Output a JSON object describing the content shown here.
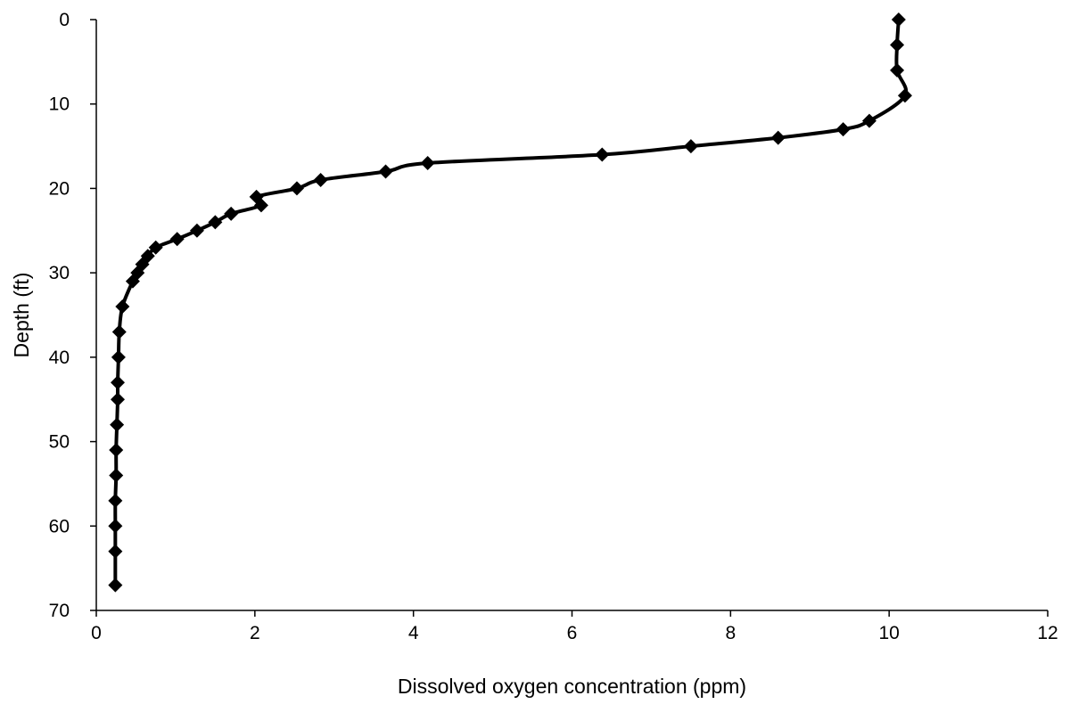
{
  "chart_data": {
    "type": "line",
    "title": "",
    "xlabel": "Dissolved oxygen concentration (ppm)",
    "ylabel": "Depth (ft)",
    "xlim": [
      0,
      12
    ],
    "ylim": [
      0,
      70
    ],
    "y_axis_inverted": true,
    "x_ticks": [
      "0",
      "2",
      "4",
      "6",
      "8",
      "10",
      "12"
    ],
    "y_ticks": [
      "0",
      "10",
      "20",
      "30",
      "40",
      "50",
      "60",
      "70"
    ],
    "grid": false,
    "legend": "none",
    "marker": "diamond",
    "line_style": "smoothed",
    "colors": {
      "series": "#000000",
      "axes": "#000000"
    },
    "series": [
      {
        "points": [
          {
            "x": 10.12,
            "y": 0
          },
          {
            "x": 10.1,
            "y": 3
          },
          {
            "x": 10.1,
            "y": 6
          },
          {
            "x": 10.2,
            "y": 9
          },
          {
            "x": 9.75,
            "y": 12
          },
          {
            "x": 9.42,
            "y": 13
          },
          {
            "x": 8.6,
            "y": 14
          },
          {
            "x": 7.5,
            "y": 15
          },
          {
            "x": 6.38,
            "y": 16
          },
          {
            "x": 4.18,
            "y": 17
          },
          {
            "x": 3.65,
            "y": 18
          },
          {
            "x": 2.83,
            "y": 19
          },
          {
            "x": 2.53,
            "y": 20
          },
          {
            "x": 2.02,
            "y": 21
          },
          {
            "x": 2.08,
            "y": 22
          },
          {
            "x": 1.7,
            "y": 23
          },
          {
            "x": 1.5,
            "y": 24
          },
          {
            "x": 1.27,
            "y": 25
          },
          {
            "x": 1.02,
            "y": 26
          },
          {
            "x": 0.75,
            "y": 27
          },
          {
            "x": 0.65,
            "y": 28
          },
          {
            "x": 0.58,
            "y": 29
          },
          {
            "x": 0.52,
            "y": 30
          },
          {
            "x": 0.46,
            "y": 31
          },
          {
            "x": 0.33,
            "y": 34
          },
          {
            "x": 0.29,
            "y": 37
          },
          {
            "x": 0.28,
            "y": 40
          },
          {
            "x": 0.27,
            "y": 43
          },
          {
            "x": 0.27,
            "y": 45
          },
          {
            "x": 0.26,
            "y": 48
          },
          {
            "x": 0.25,
            "y": 51
          },
          {
            "x": 0.25,
            "y": 54
          },
          {
            "x": 0.24,
            "y": 57
          },
          {
            "x": 0.24,
            "y": 60
          },
          {
            "x": 0.24,
            "y": 63
          },
          {
            "x": 0.24,
            "y": 67
          }
        ]
      }
    ]
  }
}
